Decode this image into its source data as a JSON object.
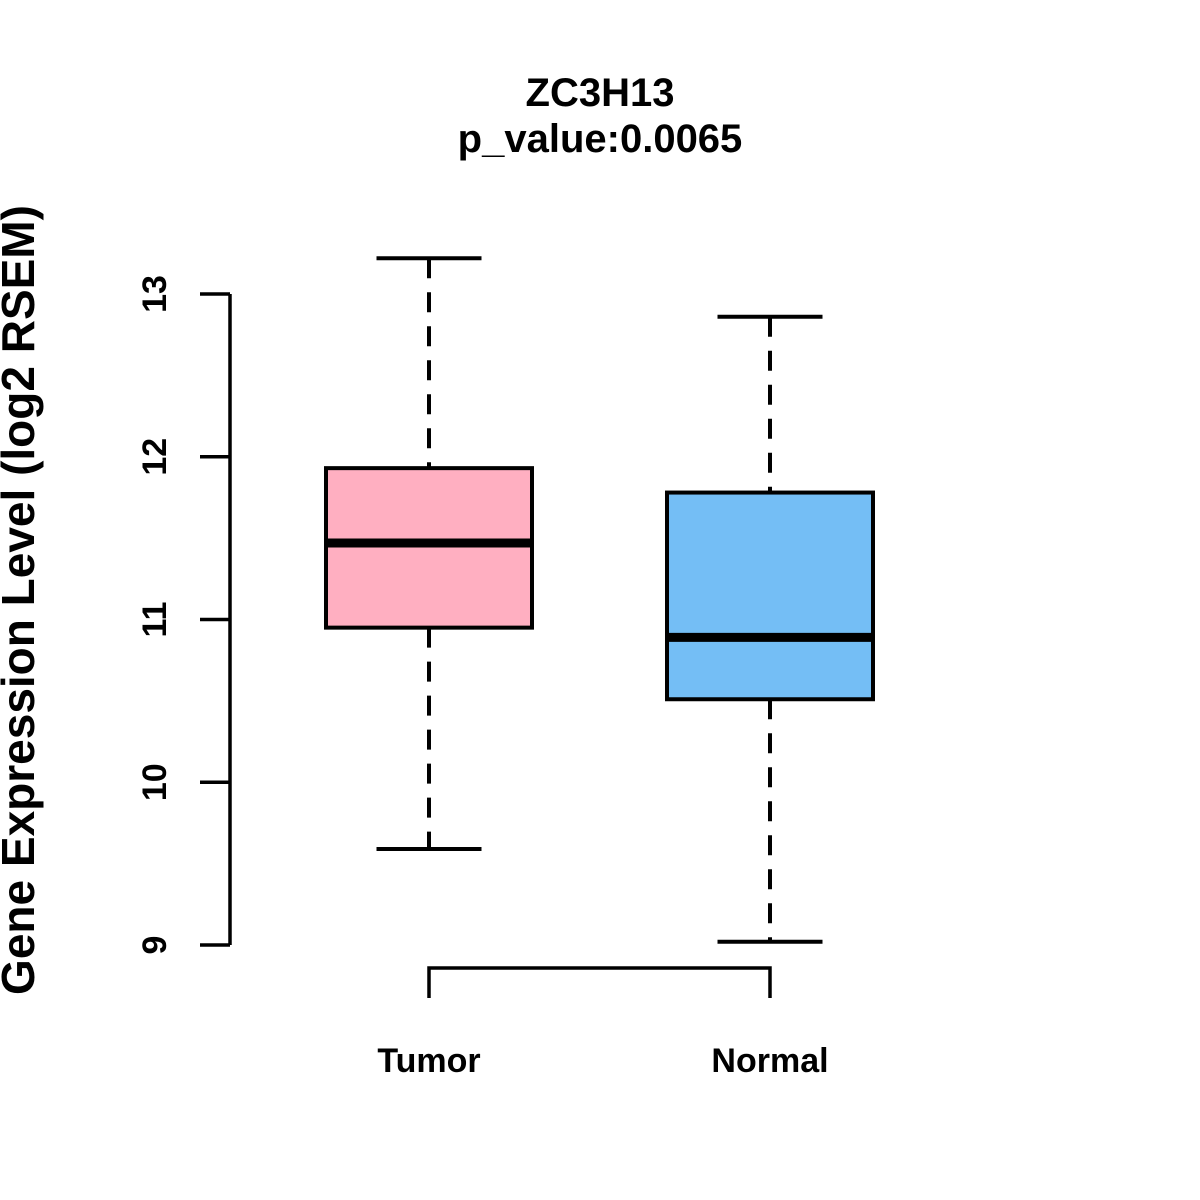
{
  "figure": {
    "background": "#ffffff"
  },
  "chart_data": {
    "type": "boxplot",
    "title": "ZC3H13",
    "subtitle": "p_value:0.0065",
    "xlabel": "",
    "ylabel": "Gene Expression Level (log2 RSEM)",
    "categories": [
      "Tumor",
      "Normal"
    ],
    "series": [
      {
        "name": "Tumor",
        "color": "#FFAFC1",
        "lower_whisker": 9.59,
        "q1": 10.95,
        "median": 11.47,
        "q3": 11.93,
        "upper_whisker": 13.22
      },
      {
        "name": "Normal",
        "color": "#74BEF5",
        "lower_whisker": 9.02,
        "q1": 10.51,
        "median": 10.89,
        "q3": 11.78,
        "upper_whisker": 12.86
      }
    ],
    "yticks": [
      9,
      10,
      11,
      12,
      13
    ],
    "ylim": [
      9,
      13
    ],
    "grid": false,
    "legend": false,
    "line_color": "#000000"
  }
}
